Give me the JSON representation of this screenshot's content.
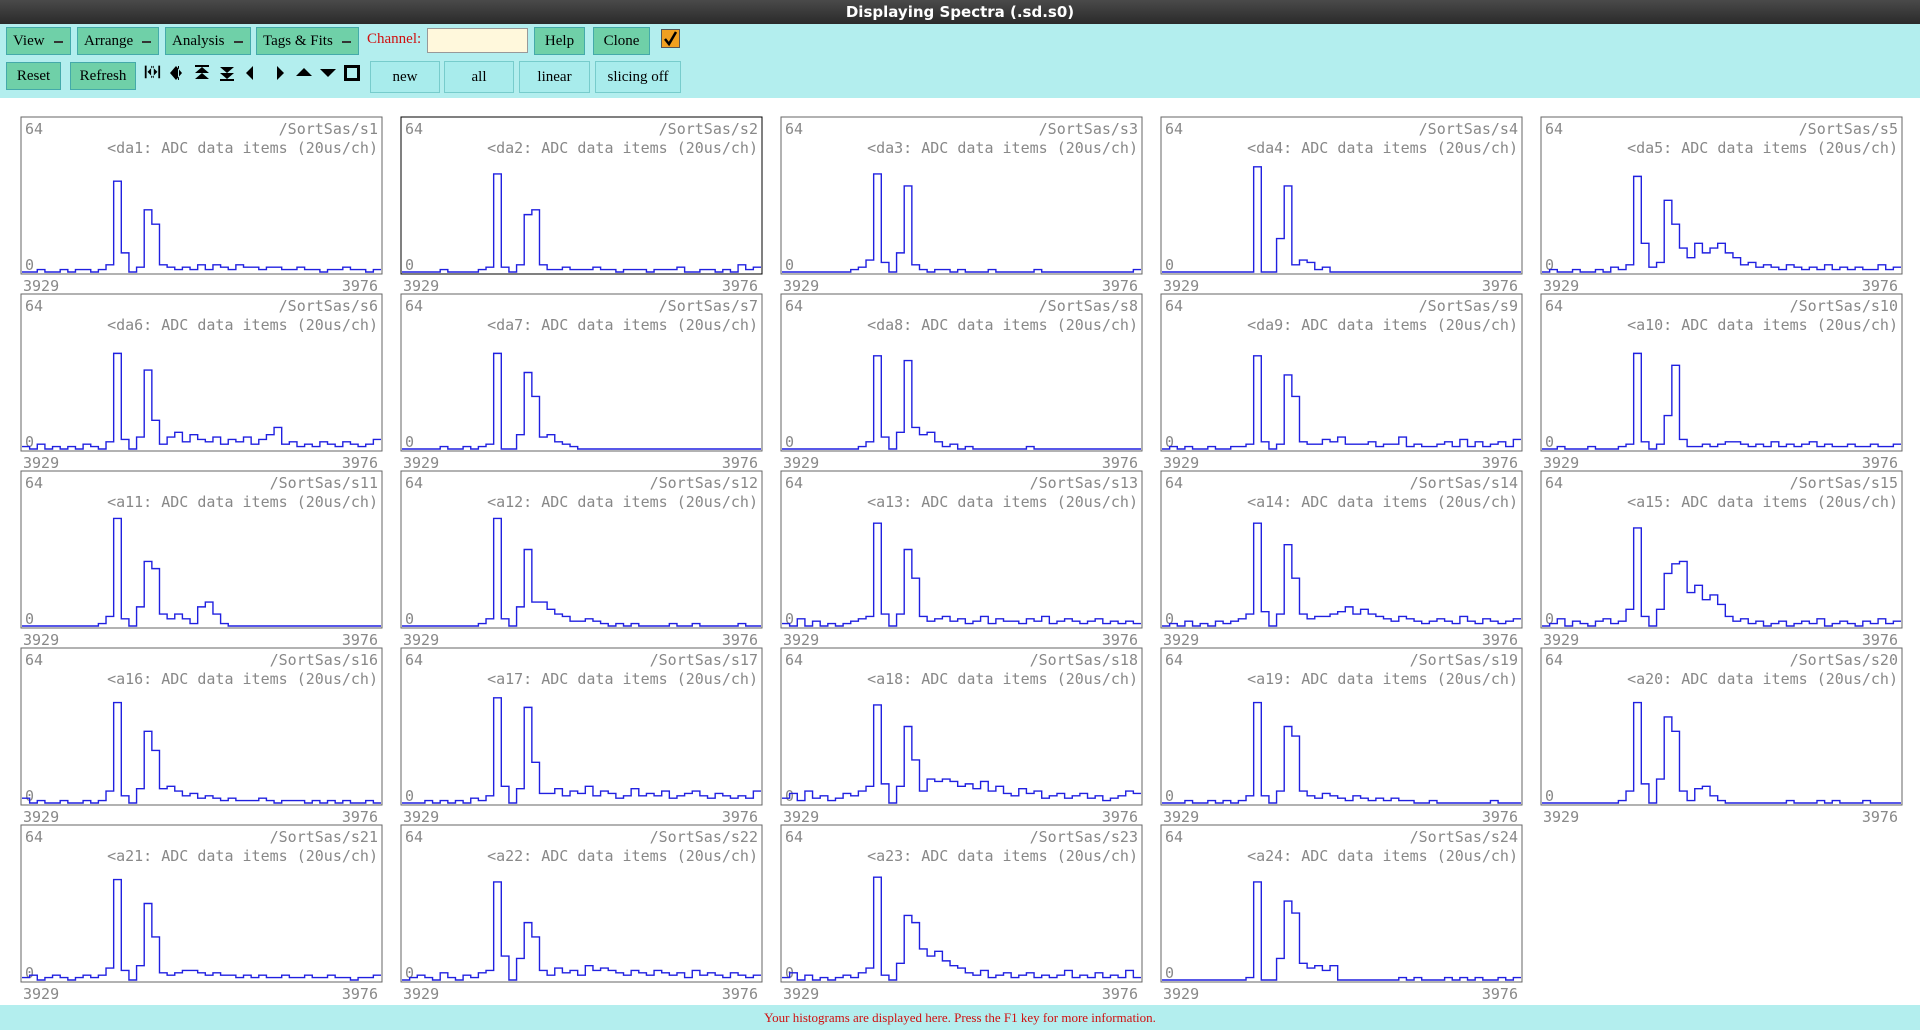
{
  "window": {
    "title": "Displaying Spectra (.sd.s0)"
  },
  "toolbar": {
    "menus": [
      "View",
      "Arrange",
      "Analysis",
      "Tags & Fits"
    ],
    "channel_label": "Channel:",
    "buttons_row1": [
      "Help",
      "Clone"
    ],
    "buttons_row2": [
      "Reset",
      "Refresh"
    ],
    "toggles": [
      "new",
      "all",
      "linear",
      "slicing off"
    ]
  },
  "spectra": [
    {
      "path": "/SortSas/s1",
      "label": "<da1: ADC data items (20us/ch)",
      "xlim": [
        3929,
        3976
      ],
      "ylim": [
        0,
        64
      ],
      "counts": [
        0,
        0,
        1,
        0,
        0,
        1,
        0,
        1,
        1,
        0,
        1,
        3,
        38,
        8,
        0,
        2,
        26,
        20,
        3,
        2,
        1,
        2,
        1,
        3,
        1,
        3,
        2,
        1,
        3,
        2,
        2,
        1,
        2,
        2,
        1,
        1,
        2,
        1,
        1,
        0,
        1,
        1,
        2,
        1,
        1,
        0,
        1
      ]
    },
    {
      "path": "/SortSas/s2",
      "label": "<da2: ADC data items (20us/ch)",
      "xlim": [
        3929,
        3976
      ],
      "ylim": [
        0,
        64
      ],
      "counts": [
        0,
        0,
        0,
        0,
        0,
        1,
        0,
        0,
        0,
        0,
        1,
        2,
        41,
        2,
        0,
        3,
        24,
        26,
        3,
        1,
        1,
        2,
        1,
        1,
        1,
        2,
        1,
        1,
        0,
        1,
        1,
        1,
        0,
        1,
        1,
        1,
        2,
        0,
        0,
        1,
        1,
        0,
        1,
        0,
        3,
        1,
        2
      ]
    },
    {
      "path": "/SortSas/s3",
      "label": "<da3: ADC data items (20us/ch)",
      "xlim": [
        3929,
        3976
      ],
      "ylim": [
        0,
        64
      ],
      "counts": [
        0,
        0,
        0,
        0,
        0,
        0,
        0,
        0,
        0,
        1,
        2,
        5,
        41,
        4,
        0,
        8,
        36,
        3,
        1,
        0,
        1,
        1,
        0,
        1,
        0,
        0,
        0,
        1,
        0,
        0,
        0,
        0,
        0,
        1,
        0,
        0,
        0,
        0,
        0,
        0,
        0,
        0,
        0,
        0,
        0,
        0,
        1
      ]
    },
    {
      "path": "/SortSas/s4",
      "label": "<da4: ADC data items (20us/ch)",
      "xlim": [
        3929,
        3976
      ],
      "ylim": [
        0,
        64
      ],
      "counts": [
        0,
        0,
        0,
        0,
        0,
        0,
        0,
        0,
        0,
        0,
        0,
        0,
        44,
        0,
        0,
        14,
        36,
        3,
        5,
        4,
        1,
        2,
        0,
        0,
        0,
        0,
        0,
        0,
        0,
        0,
        0,
        0,
        0,
        0,
        0,
        0,
        0,
        0,
        0,
        0,
        0,
        0,
        0,
        0,
        0,
        0,
        0
      ]
    },
    {
      "path": "/SortSas/s5",
      "label": "<da5: ADC data items (20us/ch)",
      "xlim": [
        3929,
        3976
      ],
      "ylim": [
        0,
        64
      ],
      "counts": [
        0,
        1,
        0,
        0,
        1,
        0,
        0,
        1,
        0,
        2,
        1,
        3,
        40,
        12,
        2,
        4,
        30,
        20,
        10,
        6,
        12,
        8,
        10,
        12,
        8,
        6,
        3,
        4,
        2,
        3,
        2,
        1,
        3,
        2,
        1,
        2,
        1,
        3,
        1,
        2,
        1,
        2,
        1,
        1,
        3,
        1,
        2
      ]
    },
    {
      "path": "/SortSas/s6",
      "label": "<da6: ADC data items (20us/ch)",
      "xlim": [
        3929,
        3976
      ],
      "ylim": [
        0,
        64
      ],
      "counts": [
        1,
        0,
        2,
        0,
        1,
        0,
        1,
        0,
        2,
        1,
        0,
        3,
        40,
        4,
        0,
        5,
        33,
        12,
        2,
        5,
        7,
        3,
        6,
        4,
        3,
        5,
        2,
        4,
        3,
        5,
        2,
        4,
        6,
        9,
        2,
        3,
        1,
        2,
        1,
        3,
        2,
        1,
        3,
        2,
        1,
        2,
        4
      ]
    },
    {
      "path": "/SortSas/s7",
      "label": "<da7: ADC data items (20us/ch)",
      "xlim": [
        3929,
        3976
      ],
      "ylim": [
        0,
        64
      ],
      "counts": [
        0,
        0,
        0,
        0,
        0,
        1,
        0,
        0,
        1,
        0,
        1,
        2,
        40,
        0,
        0,
        6,
        32,
        22,
        5,
        6,
        3,
        2,
        1,
        0,
        0,
        0,
        0,
        0,
        0,
        0,
        0,
        0,
        0,
        0,
        0,
        0,
        0,
        0,
        0,
        0,
        0,
        0,
        0,
        0,
        0,
        0,
        0
      ]
    },
    {
      "path": "/SortSas/s8",
      "label": "<da8: ADC data items (20us/ch)",
      "xlim": [
        3929,
        3976
      ],
      "ylim": [
        0,
        64
      ],
      "counts": [
        0,
        0,
        0,
        0,
        0,
        0,
        0,
        0,
        0,
        0,
        1,
        3,
        39,
        5,
        0,
        7,
        37,
        9,
        6,
        7,
        3,
        1,
        2,
        0,
        1,
        0,
        0,
        0,
        0,
        0,
        0,
        0,
        1,
        0,
        0,
        0,
        0,
        0,
        0,
        0,
        0,
        0,
        0,
        0,
        0,
        0,
        0
      ]
    },
    {
      "path": "/SortSas/s9",
      "label": "<da9: ADC data items (20us/ch)",
      "xlim": [
        3929,
        3976
      ],
      "ylim": [
        0,
        64
      ],
      "counts": [
        0,
        1,
        0,
        1,
        0,
        0,
        1,
        0,
        0,
        1,
        1,
        2,
        39,
        3,
        0,
        2,
        31,
        22,
        3,
        2,
        2,
        4,
        3,
        5,
        2,
        2,
        2,
        3,
        1,
        2,
        2,
        5,
        1,
        2,
        1,
        1,
        2,
        3,
        1,
        4,
        1,
        3,
        1,
        2,
        3,
        1,
        4
      ]
    },
    {
      "path": "/SortSas/s10",
      "label": "<a10: ADC data items (20us/ch)",
      "xlim": [
        3929,
        3976
      ],
      "ylim": [
        0,
        64
      ],
      "counts": [
        0,
        0,
        1,
        0,
        0,
        0,
        1,
        0,
        0,
        0,
        1,
        2,
        40,
        3,
        0,
        2,
        14,
        35,
        4,
        1,
        1,
        2,
        1,
        2,
        3,
        3,
        2,
        1,
        2,
        1,
        3,
        1,
        2,
        1,
        2,
        3,
        1,
        2,
        1,
        1,
        2,
        1,
        1,
        2,
        1,
        1,
        2
      ]
    },
    {
      "path": "/SortSas/s11",
      "label": "<a11: ADC data items (20us/ch)",
      "xlim": [
        3929,
        3976
      ],
      "ylim": [
        0,
        64
      ],
      "counts": [
        0,
        0,
        0,
        0,
        0,
        0,
        0,
        0,
        0,
        0,
        1,
        4,
        45,
        3,
        0,
        8,
        27,
        24,
        5,
        3,
        5,
        3,
        1,
        8,
        10,
        5,
        1,
        0,
        0,
        0,
        0,
        0,
        0,
        0,
        0,
        0,
        0,
        0,
        0,
        0,
        0,
        0,
        0,
        0,
        0,
        0,
        0
      ]
    },
    {
      "path": "/SortSas/s12",
      "label": "<a12: ADC data items (20us/ch)",
      "xlim": [
        3929,
        3976
      ],
      "ylim": [
        0,
        64
      ],
      "counts": [
        0,
        0,
        0,
        0,
        0,
        0,
        0,
        0,
        0,
        0,
        1,
        3,
        45,
        3,
        0,
        8,
        32,
        10,
        10,
        7,
        5,
        4,
        2,
        2,
        3,
        2,
        1,
        0,
        1,
        0,
        1,
        0,
        0,
        0,
        0,
        1,
        0,
        0,
        1,
        0,
        0,
        0,
        0,
        0,
        1,
        0,
        0
      ]
    },
    {
      "path": "/SortSas/s13",
      "label": "<a13: ADC data items (20us/ch)",
      "xlim": [
        3929,
        3976
      ],
      "ylim": [
        0,
        64
      ],
      "counts": [
        1,
        0,
        3,
        0,
        2,
        0,
        1,
        0,
        1,
        2,
        3,
        4,
        43,
        5,
        0,
        5,
        32,
        20,
        4,
        2,
        3,
        4,
        2,
        3,
        1,
        2,
        4,
        1,
        3,
        2,
        2,
        1,
        3,
        2,
        4,
        1,
        2,
        3,
        2,
        1,
        2,
        3,
        1,
        2,
        1,
        2,
        1
      ]
    },
    {
      "path": "/SortSas/s14",
      "label": "<a14: ADC data items (20us/ch)",
      "xlim": [
        3929,
        3976
      ],
      "ylim": [
        0,
        64
      ],
      "counts": [
        0,
        1,
        0,
        2,
        0,
        1,
        0,
        2,
        1,
        2,
        3,
        5,
        43,
        6,
        0,
        5,
        34,
        20,
        5,
        3,
        4,
        4,
        5,
        6,
        8,
        5,
        7,
        5,
        4,
        3,
        2,
        4,
        3,
        2,
        1,
        2,
        3,
        2,
        1,
        4,
        2,
        1,
        3,
        2,
        1,
        2,
        3
      ]
    },
    {
      "path": "/SortSas/s15",
      "label": "<a15: ADC data items (20us/ch)",
      "xlim": [
        3929,
        3976
      ],
      "ylim": [
        0,
        64
      ],
      "counts": [
        0,
        1,
        3,
        0,
        2,
        1,
        0,
        2,
        3,
        1,
        2,
        7,
        41,
        4,
        0,
        7,
        22,
        26,
        27,
        14,
        17,
        11,
        13,
        9,
        4,
        2,
        3,
        1,
        2,
        0,
        1,
        2,
        0,
        1,
        2,
        1,
        3,
        0,
        1,
        2,
        1,
        0,
        2,
        1,
        3,
        1,
        2
      ]
    },
    {
      "path": "/SortSas/s16",
      "label": "<a16: ADC data items (20us/ch)",
      "xlim": [
        3929,
        3976
      ],
      "ylim": [
        0,
        64
      ],
      "counts": [
        2,
        0,
        1,
        0,
        0,
        1,
        0,
        0,
        1,
        0,
        1,
        5,
        42,
        3,
        0,
        6,
        30,
        22,
        6,
        7,
        5,
        3,
        4,
        2,
        3,
        2,
        1,
        2,
        1,
        1,
        1,
        2,
        1,
        0,
        1,
        1,
        1,
        0,
        1,
        0,
        1,
        0,
        1,
        0,
        0,
        1,
        0
      ]
    },
    {
      "path": "/SortSas/s17",
      "label": "<a17: ADC data items (20us/ch)",
      "xlim": [
        3929,
        3976
      ],
      "ylim": [
        0,
        64
      ],
      "counts": [
        0,
        0,
        0,
        1,
        0,
        1,
        0,
        1,
        0,
        2,
        1,
        3,
        44,
        7,
        0,
        6,
        40,
        17,
        4,
        4,
        6,
        3,
        5,
        4,
        7,
        3,
        5,
        4,
        2,
        3,
        6,
        3,
        4,
        3,
        5,
        2,
        3,
        4,
        5,
        3,
        2,
        4,
        3,
        2,
        3,
        2,
        5
      ]
    },
    {
      "path": "/SortSas/s18",
      "label": "<a18: ADC data items (20us/ch)",
      "xlim": [
        3929,
        3976
      ],
      "ylim": [
        0,
        64
      ],
      "counts": [
        2,
        4,
        1,
        5,
        2,
        3,
        1,
        2,
        4,
        3,
        5,
        7,
        41,
        8,
        0,
        7,
        32,
        18,
        5,
        10,
        9,
        10,
        9,
        7,
        8,
        6,
        9,
        5,
        7,
        4,
        3,
        6,
        4,
        5,
        2,
        3,
        4,
        2,
        3,
        4,
        2,
        3,
        1,
        2,
        3,
        5,
        4
      ]
    },
    {
      "path": "/SortSas/s19",
      "label": "<a19: ADC data items (20us/ch)",
      "xlim": [
        3929,
        3976
      ],
      "ylim": [
        0,
        64
      ],
      "counts": [
        0,
        0,
        0,
        1,
        0,
        0,
        1,
        0,
        1,
        0,
        1,
        3,
        42,
        3,
        0,
        5,
        32,
        28,
        5,
        3,
        2,
        4,
        3,
        2,
        1,
        3,
        2,
        1,
        2,
        1,
        2,
        1,
        1,
        0,
        0,
        1,
        0,
        0,
        0,
        0,
        0,
        0,
        0,
        1,
        0,
        0,
        0
      ]
    },
    {
      "path": "/SortSas/s20",
      "label": "<a20: ADC data items (20us/ch)",
      "xlim": [
        3929,
        3976
      ],
      "ylim": [
        0,
        64
      ],
      "counts": [
        0,
        0,
        0,
        0,
        0,
        0,
        0,
        0,
        0,
        0,
        1,
        5,
        42,
        8,
        0,
        10,
        36,
        30,
        5,
        1,
        6,
        7,
        3,
        1,
        0,
        0,
        0,
        0,
        0,
        0,
        0,
        0,
        1,
        0,
        0,
        0,
        1,
        0,
        1,
        0,
        0,
        0,
        1,
        0,
        0,
        0,
        0
      ]
    },
    {
      "path": "/SortSas/s21",
      "label": "<a21: ADC data items (20us/ch)",
      "xlim": [
        3929,
        3976
      ],
      "ylim": [
        0,
        64
      ],
      "counts": [
        1,
        2,
        0,
        1,
        2,
        1,
        0,
        1,
        2,
        1,
        2,
        5,
        42,
        4,
        0,
        6,
        32,
        18,
        3,
        2,
        3,
        4,
        4,
        3,
        2,
        3,
        2,
        2,
        1,
        2,
        1,
        2,
        1,
        1,
        2,
        1,
        1,
        2,
        1,
        1,
        2,
        1,
        1,
        0,
        1,
        1,
        2
      ]
    },
    {
      "path": "/SortSas/s22",
      "label": "<a22: ADC data items (20us/ch)",
      "xlim": [
        3929,
        3976
      ],
      "ylim": [
        0,
        64
      ],
      "counts": [
        0,
        1,
        2,
        1,
        0,
        3,
        1,
        0,
        2,
        1,
        3,
        4,
        41,
        10,
        0,
        9,
        24,
        18,
        4,
        2,
        5,
        3,
        4,
        2,
        6,
        4,
        5,
        4,
        3,
        2,
        4,
        3,
        2,
        4,
        3,
        2,
        3,
        1,
        4,
        2,
        3,
        2,
        1,
        3,
        2,
        1,
        2
      ]
    },
    {
      "path": "/SortSas/s23",
      "label": "<a23: ADC data items (20us/ch)",
      "xlim": [
        3929,
        3976
      ],
      "ylim": [
        0,
        64
      ],
      "counts": [
        1,
        3,
        0,
        2,
        0,
        1,
        0,
        1,
        2,
        1,
        3,
        5,
        43,
        2,
        0,
        7,
        27,
        24,
        13,
        10,
        12,
        8,
        6,
        5,
        3,
        2,
        4,
        1,
        2,
        3,
        1,
        2,
        3,
        1,
        2,
        1,
        2,
        4,
        1,
        2,
        1,
        3,
        1,
        2,
        1,
        4,
        1
      ]
    },
    {
      "path": "/SortSas/s24",
      "label": "<a24: ADC data items (20us/ch)",
      "xlim": [
        3929,
        3976
      ],
      "ylim": [
        0,
        64
      ],
      "counts": [
        0,
        0,
        0,
        0,
        0,
        0,
        0,
        0,
        0,
        0,
        0,
        1,
        41,
        0,
        0,
        9,
        33,
        28,
        7,
        5,
        6,
        4,
        6,
        0,
        0,
        0,
        0,
        0,
        0,
        0,
        0,
        1,
        0,
        1,
        0,
        0,
        0,
        1,
        0,
        1,
        0,
        1,
        0,
        0,
        1,
        0,
        1
      ]
    }
  ],
  "status": "Your histograms are displayed here. Press the F1 key for more information."
}
